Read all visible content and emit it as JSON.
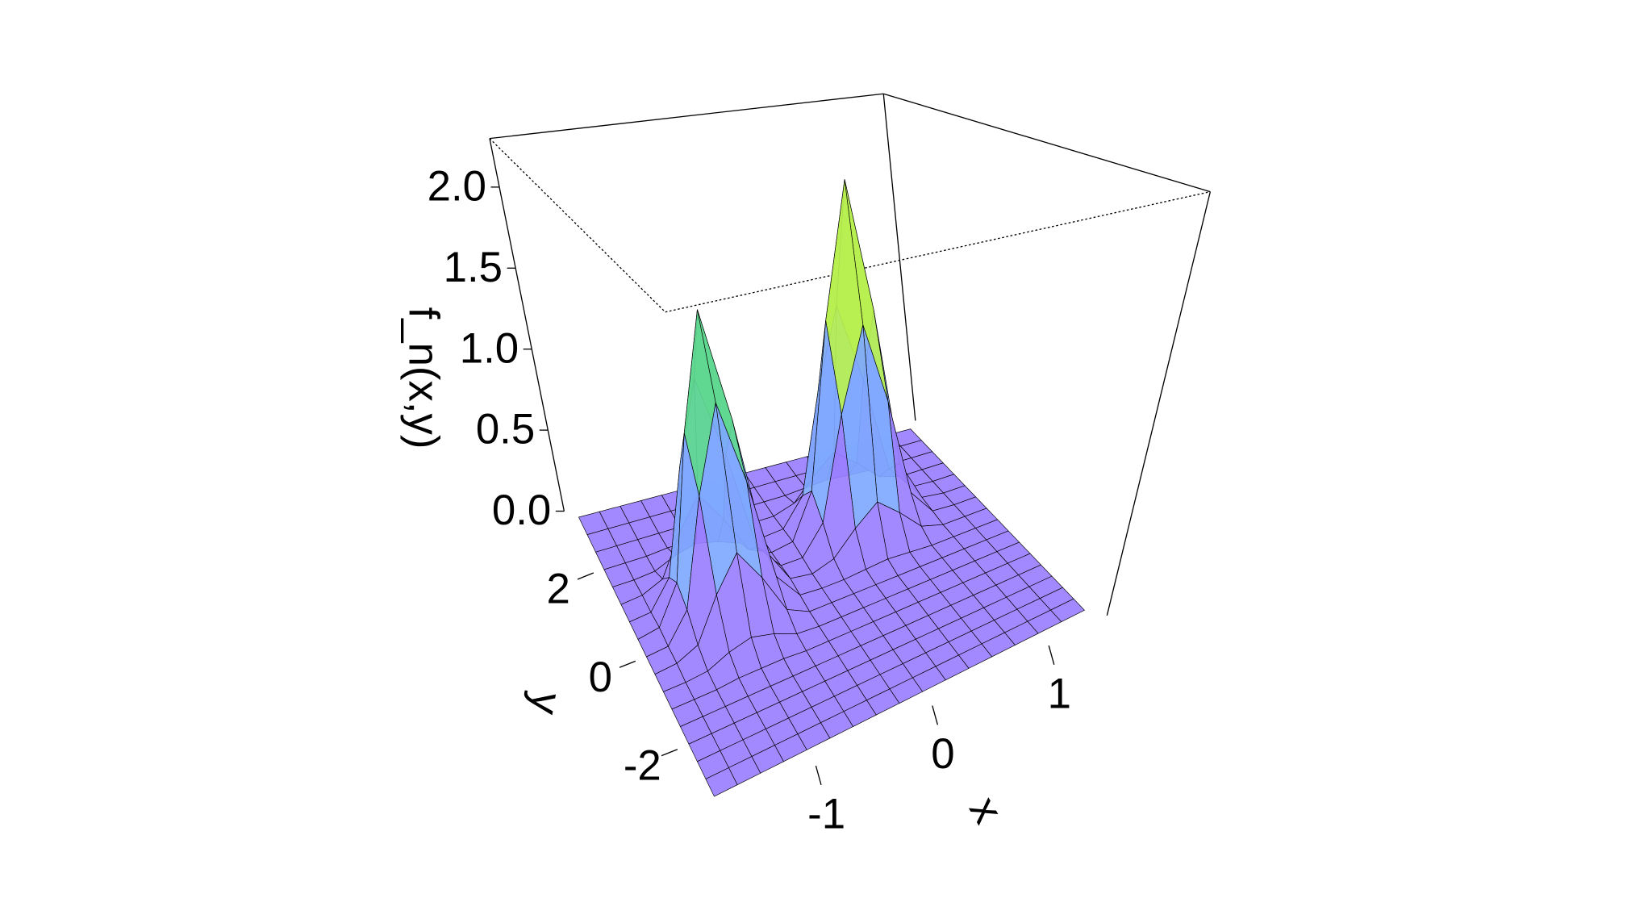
{
  "chart_data": {
    "type": "surface",
    "x_label": "x",
    "y_label": "y",
    "z_label": "f_n(x,y)",
    "x": [
      -1.8,
      -1.6,
      -1.4,
      -1.2,
      -1.0,
      -0.8,
      -0.6,
      -0.4,
      -0.2,
      0,
      0.2,
      0.4,
      0.6,
      0.8,
      1.0,
      1.2,
      1.4
    ],
    "y": [
      -3.2,
      -2.8,
      -2.4,
      -2.0,
      -1.6,
      -1.2,
      -0.8,
      -0.4,
      0,
      0.4,
      0.8,
      1.2,
      1.6,
      2.0,
      2.4,
      2.8,
      3.2
    ],
    "z": [
      [
        0,
        0,
        0,
        0,
        0,
        0,
        0,
        0,
        0,
        0,
        0,
        0,
        0,
        0,
        0,
        0,
        0
      ],
      [
        0,
        0,
        0,
        0,
        0,
        0,
        0,
        0,
        0,
        0,
        0,
        0,
        0,
        0,
        0,
        0,
        0
      ],
      [
        0,
        0,
        0,
        0,
        0,
        0,
        0,
        0,
        0,
        0,
        0,
        0,
        0,
        0,
        0,
        0,
        0
      ],
      [
        0,
        0,
        0,
        0,
        0,
        0,
        0,
        0,
        0,
        0,
        0,
        0,
        0,
        0,
        0,
        0,
        0
      ],
      [
        0,
        0,
        0,
        0,
        0,
        0,
        0,
        0,
        0,
        0,
        0,
        0,
        0,
        0,
        0,
        0,
        0
      ],
      [
        0,
        0,
        0,
        0.01,
        0.01,
        0.01,
        0,
        0,
        0,
        0,
        0,
        0,
        0,
        0,
        0,
        0,
        0
      ],
      [
        0,
        0,
        0.01,
        0.06,
        0.09,
        0.06,
        0.01,
        0,
        0,
        0,
        0,
        0,
        0,
        0,
        0,
        0,
        0
      ],
      [
        0,
        0.01,
        0.06,
        0.28,
        0.46,
        0.28,
        0.06,
        0,
        0,
        0,
        0,
        0,
        0,
        0,
        0,
        0,
        0
      ],
      [
        0,
        0.01,
        0.16,
        0.73,
        1.2,
        0.73,
        0.16,
        0.01,
        0,
        0,
        0.01,
        0.02,
        0.01,
        0,
        0,
        0,
        0
      ],
      [
        0,
        0.02,
        0.22,
        1,
        1.65,
        1,
        0.22,
        0.02,
        0,
        0.04,
        0.17,
        0.28,
        0.17,
        0.04,
        0,
        0,
        0
      ],
      [
        0,
        0.01,
        0.16,
        0.73,
        1.2,
        0.73,
        0.16,
        0.01,
        0.01,
        0.17,
        0.77,
        1.27,
        0.77,
        0.17,
        0.01,
        0,
        0
      ],
      [
        0,
        0.01,
        0.06,
        0.28,
        0.46,
        0.28,
        0.06,
        0,
        0.02,
        0.28,
        1.27,
        2.1,
        1.27,
        0.28,
        0.02,
        0,
        0
      ],
      [
        0,
        0,
        0.01,
        0.06,
        0.09,
        0.06,
        0.01,
        0,
        0.01,
        0.17,
        0.77,
        1.27,
        0.77,
        0.17,
        0.01,
        0,
        0
      ],
      [
        0,
        0,
        0,
        0.01,
        0.01,
        0.01,
        0,
        0,
        0,
        0.04,
        0.17,
        0.28,
        0.17,
        0.04,
        0,
        0,
        0
      ],
      [
        0,
        0,
        0,
        0,
        0,
        0,
        0,
        0,
        0,
        0,
        0.01,
        0.02,
        0.01,
        0,
        0,
        0,
        0
      ],
      [
        0,
        0,
        0,
        0,
        0,
        0,
        0,
        0,
        0,
        0,
        0,
        0,
        0,
        0,
        0,
        0,
        0
      ],
      [
        0,
        0,
        0,
        0,
        0,
        0,
        0,
        0,
        0,
        0,
        0,
        0,
        0,
        0,
        0,
        0,
        0
      ]
    ],
    "xlim": [
      -1.9,
      1.5
    ],
    "ylim": [
      -3.6,
      3.4
    ],
    "zlim": [
      0,
      2.3
    ],
    "xticks": [
      -1,
      0,
      1
    ],
    "yticks": [
      -2,
      0,
      2
    ],
    "zticks": [
      {
        "value": 0,
        "label": "0.0"
      },
      {
        "value": 0.5,
        "label": "0.5"
      },
      {
        "value": 1,
        "label": "1.0"
      },
      {
        "value": 1.5,
        "label": "1.5"
      },
      {
        "value": 2,
        "label": "2.0"
      }
    ],
    "colors": [
      "#9a7fff",
      "#7fa8ff",
      "#5fd890",
      "#b8f050",
      "#ffe48a"
    ]
  }
}
